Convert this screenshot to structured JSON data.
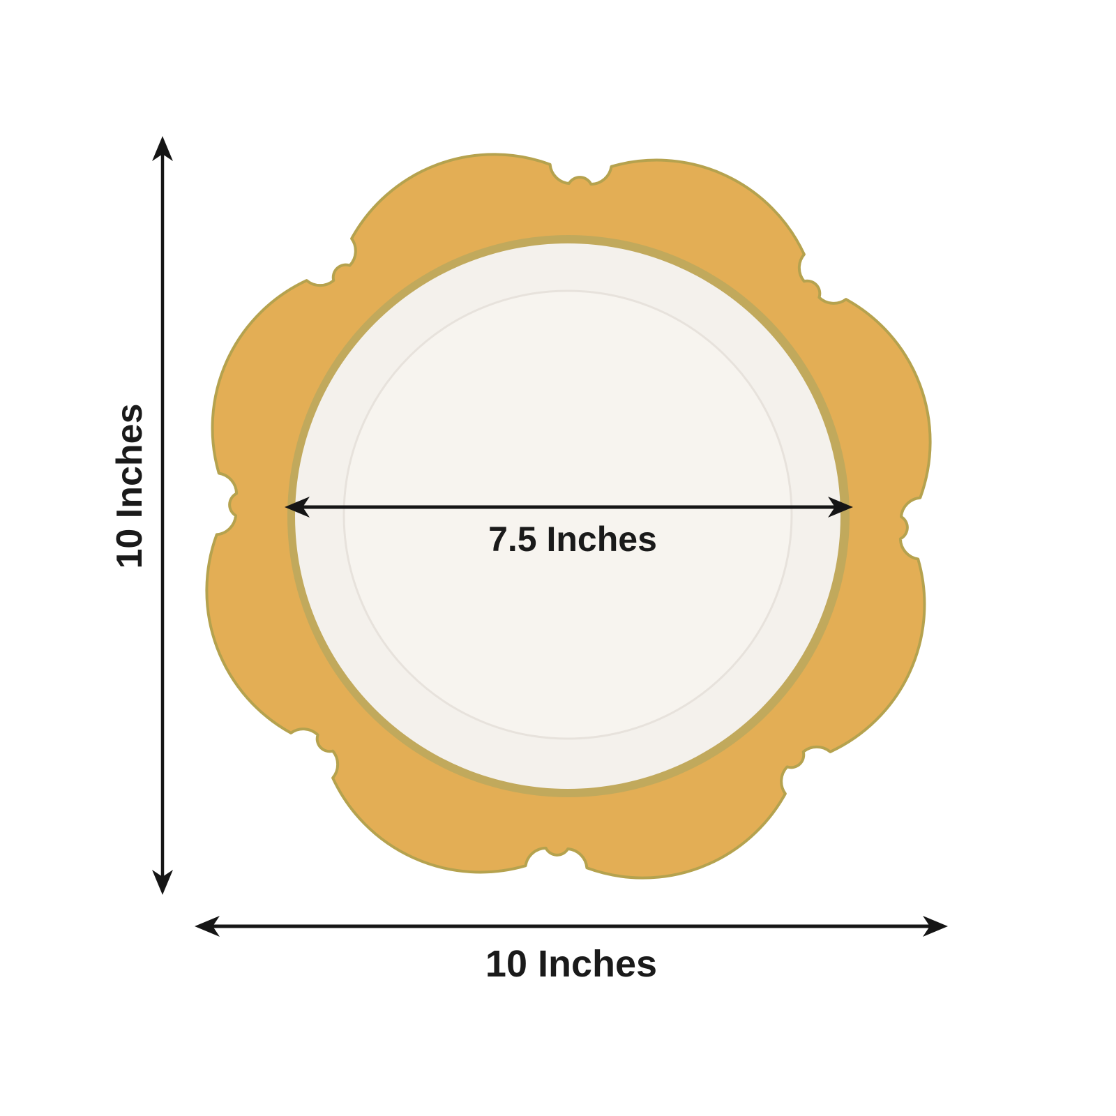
{
  "diagram": {
    "subject": "gold scalloped rim plate with white center",
    "dimensions": {
      "height_label": "10 Inches",
      "width_label": "10 Inches",
      "inner_diameter_label": "7.5 Inches"
    }
  },
  "colors": {
    "background": "#FFFFFF",
    "rim_gold": "#E3AE55",
    "rim_edge": "#B5A24E",
    "inner_gold_ring": "#C1A95C",
    "plate_white": "#F4F1EC",
    "plate_floor": "#F7F4EF",
    "floor_edge": "#E7E2DC",
    "dimension_line": "#151515",
    "label_text": "#1A1A1A"
  }
}
